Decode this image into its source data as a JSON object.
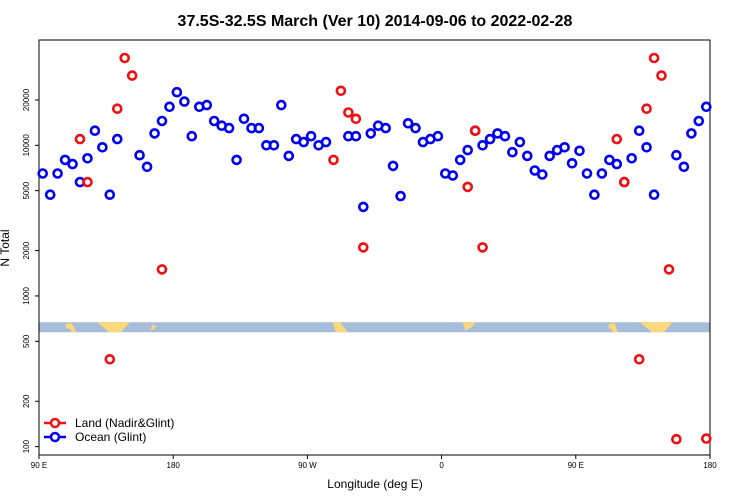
{
  "chart_data": {
    "type": "scatter",
    "title": "37.5S-32.5S March (Ver 10)   2014-09-06 to 2022-02-28",
    "xlabel": "Longitude (deg E)",
    "ylabel": "N Total",
    "y_scale": "log",
    "ylim": [
      88,
      50000
    ],
    "x_units": "degrees east, unwrapped from 90 E (90 to 540)",
    "xlim": [
      90,
      540
    ],
    "x_ticks": [
      {
        "value": 90,
        "label": "90 E"
      },
      {
        "value": 180,
        "label": "180"
      },
      {
        "value": 270,
        "label": "90 W"
      },
      {
        "value": 360,
        "label": "0"
      },
      {
        "value": 450,
        "label": "90 E"
      },
      {
        "value": 540,
        "label": "180"
      }
    ],
    "y_ticks": [
      {
        "value": 100,
        "label": "100"
      },
      {
        "value": 200,
        "label": "200"
      },
      {
        "value": 500,
        "label": "500"
      },
      {
        "value": 1000,
        "label": "1000"
      },
      {
        "value": 2000,
        "label": "2000"
      },
      {
        "value": 5000,
        "label": "5000"
      },
      {
        "value": 10000,
        "label": "10000"
      },
      {
        "value": 20000,
        "label": "20000"
      }
    ],
    "land_strip": {
      "y_value": 620,
      "ocean_color": "#a7bcd9",
      "land_color": "#fdd87a"
    },
    "legend": {
      "position": "bottom-left"
    },
    "series": [
      {
        "name": "Land (Nadir&Glint)",
        "color": "#ee1111",
        "x": [
          117.5,
          122.5,
          137.5,
          142.5,
          147.5,
          152.5,
          172.5,
          287.5,
          292.5,
          297.5,
          302.5,
          307.5,
          377.5,
          382.5,
          387.5,
          477.5,
          482.5,
          492.5,
          497.5,
          502.5,
          507.5,
          512.5,
          517.5,
          537.5
        ],
        "y": [
          11000,
          5700,
          380,
          17500,
          38000,
          29000,
          1500,
          8000,
          23000,
          16500,
          15000,
          2100,
          5300,
          12500,
          2100,
          11000,
          5700,
          380,
          17500,
          38000,
          29000,
          1500,
          112,
          113
        ]
      },
      {
        "name": "Ocean (Glint)",
        "color": "#0000ee",
        "x": [
          92.5,
          97.5,
          102.5,
          107.5,
          112.5,
          117.5,
          122.5,
          127.5,
          132.5,
          137.5,
          142.5,
          157.5,
          162.5,
          167.5,
          172.5,
          177.5,
          182.5,
          187.5,
          192.5,
          197.5,
          202.5,
          207.5,
          212.5,
          217.5,
          222.5,
          227.5,
          232.5,
          237.5,
          242.5,
          247.5,
          252.5,
          257.5,
          262.5,
          267.5,
          272.5,
          277.5,
          282.5,
          297.5,
          302.5,
          307.5,
          312.5,
          317.5,
          322.5,
          327.5,
          332.5,
          337.5,
          342.5,
          347.5,
          352.5,
          357.5,
          362.5,
          367.5,
          372.5,
          377.5,
          382.5,
          387.5,
          392.5,
          397.5,
          402.5,
          407.5,
          412.5,
          417.5,
          422.5,
          427.5,
          432.5,
          437.5,
          442.5,
          447.5,
          452.5,
          457.5,
          462.5,
          467.5,
          472.5,
          477.5,
          482.5,
          487.5,
          492.5,
          497.5,
          502.5,
          517.5,
          522.5,
          527.5,
          532.5,
          537.5
        ],
        "y": [
          6500,
          4700,
          6500,
          8000,
          7500,
          5700,
          8200,
          12500,
          9700,
          4700,
          11000,
          8600,
          7200,
          12000,
          14500,
          18000,
          22500,
          19500,
          11500,
          18000,
          18500,
          14500,
          13500,
          13000,
          8000,
          15000,
          13000,
          13000,
          10000,
          10000,
          18500,
          8500,
          11000,
          10500,
          11500,
          10000,
          10500,
          11500,
          11500,
          3900,
          12000,
          13500,
          13000,
          7300,
          4600,
          14000,
          13000,
          10500,
          11000,
          11500,
          6500,
          6300,
          8000,
          9300,
          12500,
          10000,
          11000,
          12000,
          11500,
          9000,
          10500,
          8500,
          6800,
          6400,
          8500,
          9300,
          9700,
          7600,
          9200,
          6500,
          4700,
          6500,
          8000,
          7500,
          5700,
          8200,
          12500,
          9700,
          4700,
          8600,
          7200,
          12000,
          14500,
          18000
        ]
      }
    ]
  }
}
